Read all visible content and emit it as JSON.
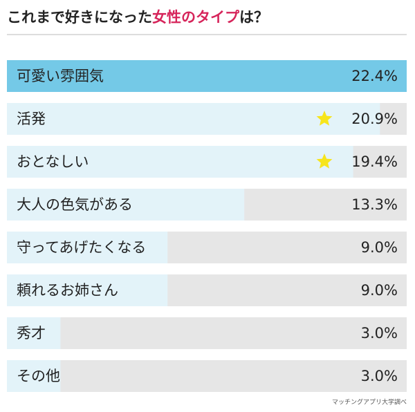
{
  "chart_data": {
    "type": "bar",
    "orientation": "horizontal",
    "title": [
      {
        "text": "これまで好きになった",
        "color": "#222222"
      },
      {
        "text": "女性のタイプ",
        "color": "#d6245a"
      },
      {
        "text": "は？",
        "color": "#222222"
      }
    ],
    "categories": [
      "可愛い雰囲気",
      "活発",
      "おとなしい",
      "大人の色気がある",
      "守ってあげたくなる",
      "頼れるお姉さん",
      "秀才",
      "その他"
    ],
    "values": [
      22.4,
      20.9,
      19.4,
      13.3,
      9.0,
      9.0,
      3.0,
      3.0
    ],
    "value_labels": [
      "22.4%",
      "20.9%",
      "19.4%",
      "13.3%",
      "9.0%",
      "9.0%",
      "3.0%",
      "3.0%"
    ],
    "colors": [
      "#74c9e7",
      "#e3f3f9",
      "#e3f3f9",
      "#e3f3f9",
      "#e3f3f9",
      "#e3f3f9",
      "#e3f3f9",
      "#e3f3f9"
    ],
    "track_color": "#e6e6e6",
    "starred": [
      false,
      true,
      true,
      false,
      false,
      false,
      false,
      false
    ],
    "star_color": "#f7e51b",
    "xlim": [
      0,
      22.4
    ],
    "source": "マッチングアプリ大学調べ"
  }
}
